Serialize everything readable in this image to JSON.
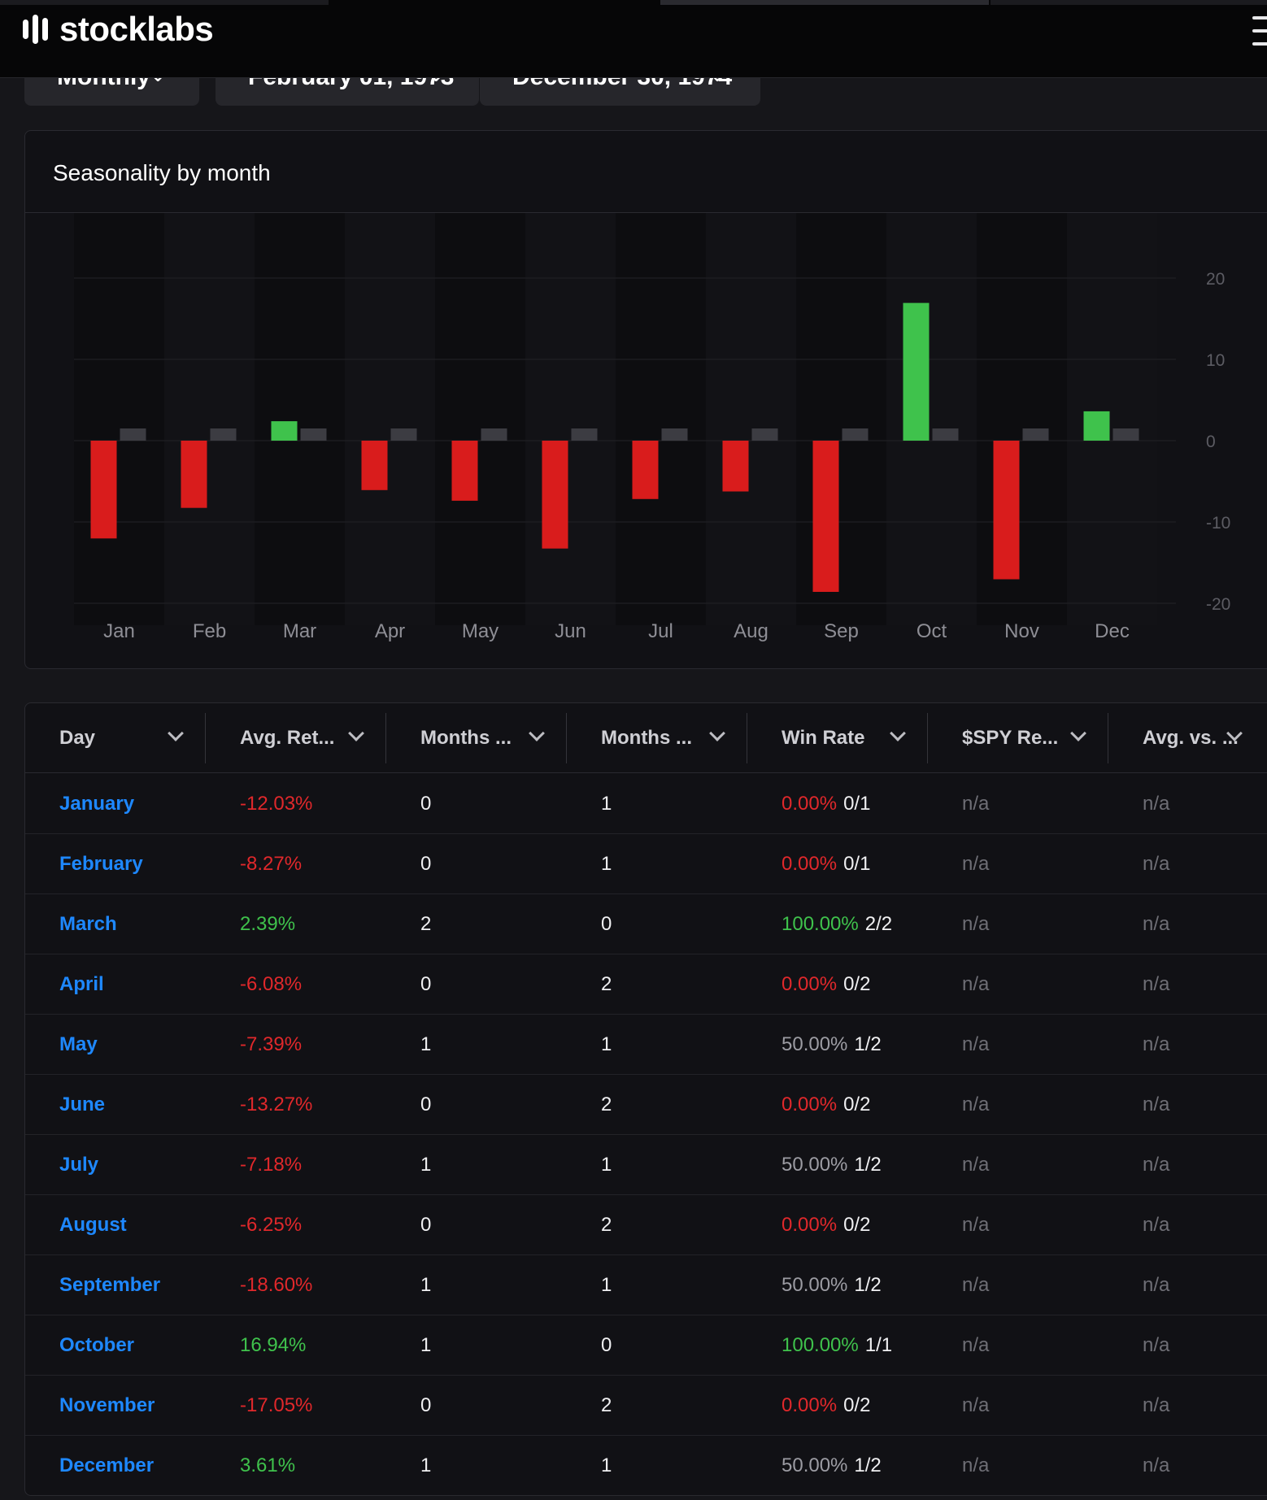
{
  "app": {
    "name": "stocklabs"
  },
  "filters": {
    "period": "Monthly",
    "start_date": "February 01, 1973",
    "end_date": "December 30, 1974"
  },
  "chart_title": "Seasonality by month",
  "chart_data": {
    "type": "bar",
    "categories": [
      "Jan",
      "Feb",
      "Mar",
      "Apr",
      "May",
      "Jun",
      "Jul",
      "Aug",
      "Sep",
      "Oct",
      "Nov",
      "Dec"
    ],
    "series": [
      {
        "values": [
          -12.03,
          -8.27,
          2.39,
          -6.08,
          -7.39,
          -13.27,
          -7.18,
          -6.25,
          -18.6,
          16.94,
          -17.05,
          3.61
        ]
      },
      {
        "values": [
          1.5,
          1.5,
          1.5,
          1.5,
          1.5,
          1.5,
          1.5,
          1.5,
          1.5,
          1.5,
          1.5,
          1.5
        ]
      }
    ],
    "yticks": [
      20,
      10,
      0,
      -10,
      -20
    ],
    "ylim": [
      -20,
      20
    ],
    "colors": {
      "positive": "#3fc24c",
      "negative": "#d91c1c",
      "benchmark": "#3c3c42"
    }
  },
  "table": {
    "headers": [
      "Day",
      "Avg. Ret...",
      "Months ...",
      "Months ...",
      "Win Rate",
      "$SPY Re...",
      "Avg. vs. ..."
    ],
    "rows": [
      {
        "month": "January",
        "avg": "-12.03%",
        "sign": "neg",
        "up": "0",
        "down": "1",
        "win_rate": "0.00%",
        "win_sign": "neg",
        "win_count": "0/1",
        "spy": "n/a",
        "vs": "n/a"
      },
      {
        "month": "February",
        "avg": "-8.27%",
        "sign": "neg",
        "up": "0",
        "down": "1",
        "win_rate": "0.00%",
        "win_sign": "neg",
        "win_count": "0/1",
        "spy": "n/a",
        "vs": "n/a"
      },
      {
        "month": "March",
        "avg": "2.39%",
        "sign": "pos",
        "up": "2",
        "down": "0",
        "win_rate": "100.00%",
        "win_sign": "pos",
        "win_count": "2/2",
        "spy": "n/a",
        "vs": "n/a"
      },
      {
        "month": "April",
        "avg": "-6.08%",
        "sign": "neg",
        "up": "0",
        "down": "2",
        "win_rate": "0.00%",
        "win_sign": "neg",
        "win_count": "0/2",
        "spy": "n/a",
        "vs": "n/a"
      },
      {
        "month": "May",
        "avg": "-7.39%",
        "sign": "neg",
        "up": "1",
        "down": "1",
        "win_rate": "50.00%",
        "win_sign": "neu",
        "win_count": "1/2",
        "spy": "n/a",
        "vs": "n/a"
      },
      {
        "month": "June",
        "avg": "-13.27%",
        "sign": "neg",
        "up": "0",
        "down": "2",
        "win_rate": "0.00%",
        "win_sign": "neg",
        "win_count": "0/2",
        "spy": "n/a",
        "vs": "n/a"
      },
      {
        "month": "July",
        "avg": "-7.18%",
        "sign": "neg",
        "up": "1",
        "down": "1",
        "win_rate": "50.00%",
        "win_sign": "neu",
        "win_count": "1/2",
        "spy": "n/a",
        "vs": "n/a"
      },
      {
        "month": "August",
        "avg": "-6.25%",
        "sign": "neg",
        "up": "0",
        "down": "2",
        "win_rate": "0.00%",
        "win_sign": "neg",
        "win_count": "0/2",
        "spy": "n/a",
        "vs": "n/a"
      },
      {
        "month": "September",
        "avg": "-18.60%",
        "sign": "neg",
        "up": "1",
        "down": "1",
        "win_rate": "50.00%",
        "win_sign": "neu",
        "win_count": "1/2",
        "spy": "n/a",
        "vs": "n/a"
      },
      {
        "month": "October",
        "avg": "16.94%",
        "sign": "pos",
        "up": "1",
        "down": "0",
        "win_rate": "100.00%",
        "win_sign": "pos",
        "win_count": "1/1",
        "spy": "n/a",
        "vs": "n/a"
      },
      {
        "month": "November",
        "avg": "-17.05%",
        "sign": "neg",
        "up": "0",
        "down": "2",
        "win_rate": "0.00%",
        "win_sign": "neg",
        "win_count": "0/2",
        "spy": "n/a",
        "vs": "n/a"
      },
      {
        "month": "December",
        "avg": "3.61%",
        "sign": "pos",
        "up": "1",
        "down": "1",
        "win_rate": "50.00%",
        "win_sign": "neu",
        "win_count": "1/2",
        "spy": "n/a",
        "vs": "n/a"
      }
    ]
  }
}
